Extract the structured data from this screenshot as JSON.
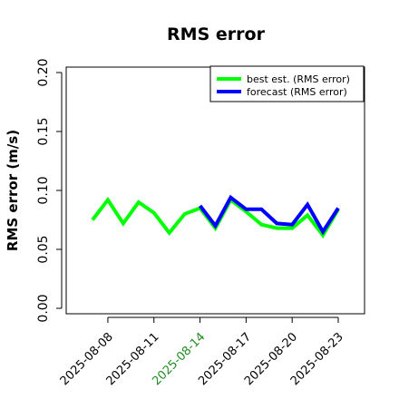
{
  "chart_data": {
    "type": "line",
    "title": "RMS error",
    "ylabel": "RMS error (m/s)",
    "xlabel": "",
    "ylim": [
      0,
      0.2
    ],
    "yticks": [
      "0.00",
      "0.05",
      "0.10",
      "0.15",
      "0.20"
    ],
    "x_start": "2025-08-07",
    "x_end": "2025-08-23",
    "xticks": [
      {
        "label": "2025-08-08",
        "color": "#000000"
      },
      {
        "label": "2025-08-11",
        "color": "#000000"
      },
      {
        "label": "2025-08-14",
        "color": "#228B22"
      },
      {
        "label": "2025-08-17",
        "color": "#000000"
      },
      {
        "label": "2025-08-20",
        "color": "#000000"
      },
      {
        "label": "2025-08-23",
        "color": "#000000"
      }
    ],
    "grid": false,
    "legend_position": "top-right",
    "series": [
      {
        "name": "best est. (RMS error)",
        "color": "#00ff00",
        "x": [
          "2025-08-07",
          "2025-08-08",
          "2025-08-09",
          "2025-08-10",
          "2025-08-11",
          "2025-08-12",
          "2025-08-13",
          "2025-08-14",
          "2025-08-15",
          "2025-08-16",
          "2025-08-17",
          "2025-08-18",
          "2025-08-19",
          "2025-08-20",
          "2025-08-21",
          "2025-08-22",
          "2025-08-23"
        ],
        "values": [
          0.075,
          0.092,
          0.072,
          0.09,
          0.081,
          0.064,
          0.08,
          0.085,
          0.068,
          0.092,
          0.082,
          0.071,
          0.068,
          0.068,
          0.079,
          0.062,
          0.084
        ]
      },
      {
        "name": "forecast (RMS error)",
        "color": "#0000ff",
        "x": [
          "2025-08-14",
          "2025-08-15",
          "2025-08-16",
          "2025-08-17",
          "2025-08-18",
          "2025-08-19",
          "2025-08-20",
          "2025-08-21",
          "2025-08-22",
          "2025-08-23"
        ],
        "values": [
          0.087,
          0.07,
          0.094,
          0.084,
          0.084,
          0.072,
          0.071,
          0.088,
          0.065,
          0.085
        ]
      }
    ]
  }
}
